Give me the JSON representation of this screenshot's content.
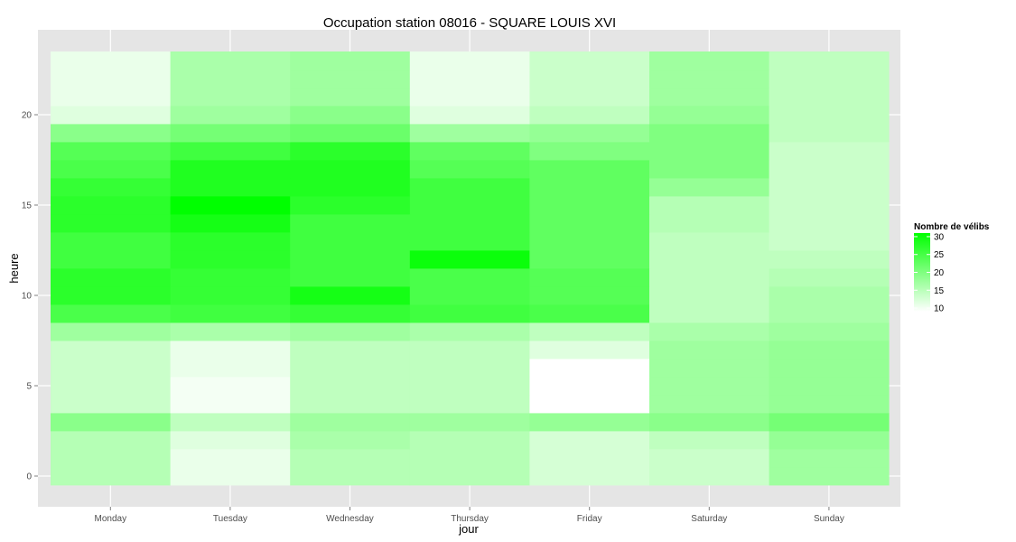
{
  "chart_data": {
    "type": "heatmap",
    "title": "Occupation station 08016 - SQUARE LOUIS XVI",
    "xlabel": "jour",
    "ylabel": "heure",
    "x_categories": [
      "Monday",
      "Tuesday",
      "Wednesday",
      "Thursday",
      "Friday",
      "Saturday",
      "Sunday"
    ],
    "y_hours": [
      0,
      1,
      2,
      3,
      4,
      5,
      6,
      7,
      8,
      9,
      10,
      11,
      12,
      13,
      14,
      15,
      16,
      17,
      18,
      19,
      20,
      21,
      22,
      23
    ],
    "y_ticks": [
      0,
      5,
      10,
      15,
      20
    ],
    "ylim": [
      -0.5,
      23.5
    ],
    "values": [
      [
        15,
        10,
        15,
        15,
        12,
        13,
        17
      ],
      [
        15,
        10,
        15,
        15,
        12,
        13,
        17
      ],
      [
        15,
        11,
        16,
        15,
        12,
        14,
        18
      ],
      [
        19,
        14,
        17,
        17,
        18,
        19,
        21
      ],
      [
        13,
        9,
        14,
        14,
        8,
        17,
        18
      ],
      [
        13,
        9,
        14,
        14,
        8,
        17,
        18
      ],
      [
        13,
        10,
        14,
        14,
        8,
        17,
        18
      ],
      [
        13,
        10,
        14,
        14,
        11,
        17,
        18
      ],
      [
        17,
        16,
        17,
        16,
        14,
        16,
        17
      ],
      [
        25,
        26,
        27,
        26,
        25,
        14,
        16
      ],
      [
        28,
        27,
        30,
        25,
        24,
        14,
        16
      ],
      [
        28,
        27,
        26,
        25,
        24,
        14,
        15
      ],
      [
        26,
        28,
        26,
        31,
        23,
        14,
        14
      ],
      [
        26,
        28,
        26,
        26,
        23,
        14,
        13
      ],
      [
        28,
        30,
        26,
        26,
        23,
        15,
        13
      ],
      [
        28,
        32,
        28,
        26,
        23,
        15,
        13
      ],
      [
        27,
        29,
        29,
        26,
        23,
        18,
        13
      ],
      [
        25,
        29,
        29,
        24,
        23,
        20,
        13
      ],
      [
        24,
        26,
        28,
        23,
        20,
        20,
        13
      ],
      [
        19,
        21,
        22,
        17,
        18,
        20,
        14
      ],
      [
        11,
        17,
        19,
        11,
        14,
        18,
        14
      ],
      [
        10,
        16,
        17,
        10,
        13,
        17,
        14
      ],
      [
        10,
        16,
        17,
        10,
        13,
        17,
        14
      ],
      [
        10,
        16,
        17,
        10,
        13,
        17,
        14
      ]
    ],
    "color_scale": {
      "low": "#ffffff",
      "high": "#00ff00",
      "min": 8,
      "max": 32
    },
    "legend": {
      "title": "Nombre de vélibs",
      "breaks": [
        10,
        15,
        20,
        25,
        30
      ],
      "position": "right"
    },
    "grid": true,
    "panel_background": "#e5e5e5"
  }
}
